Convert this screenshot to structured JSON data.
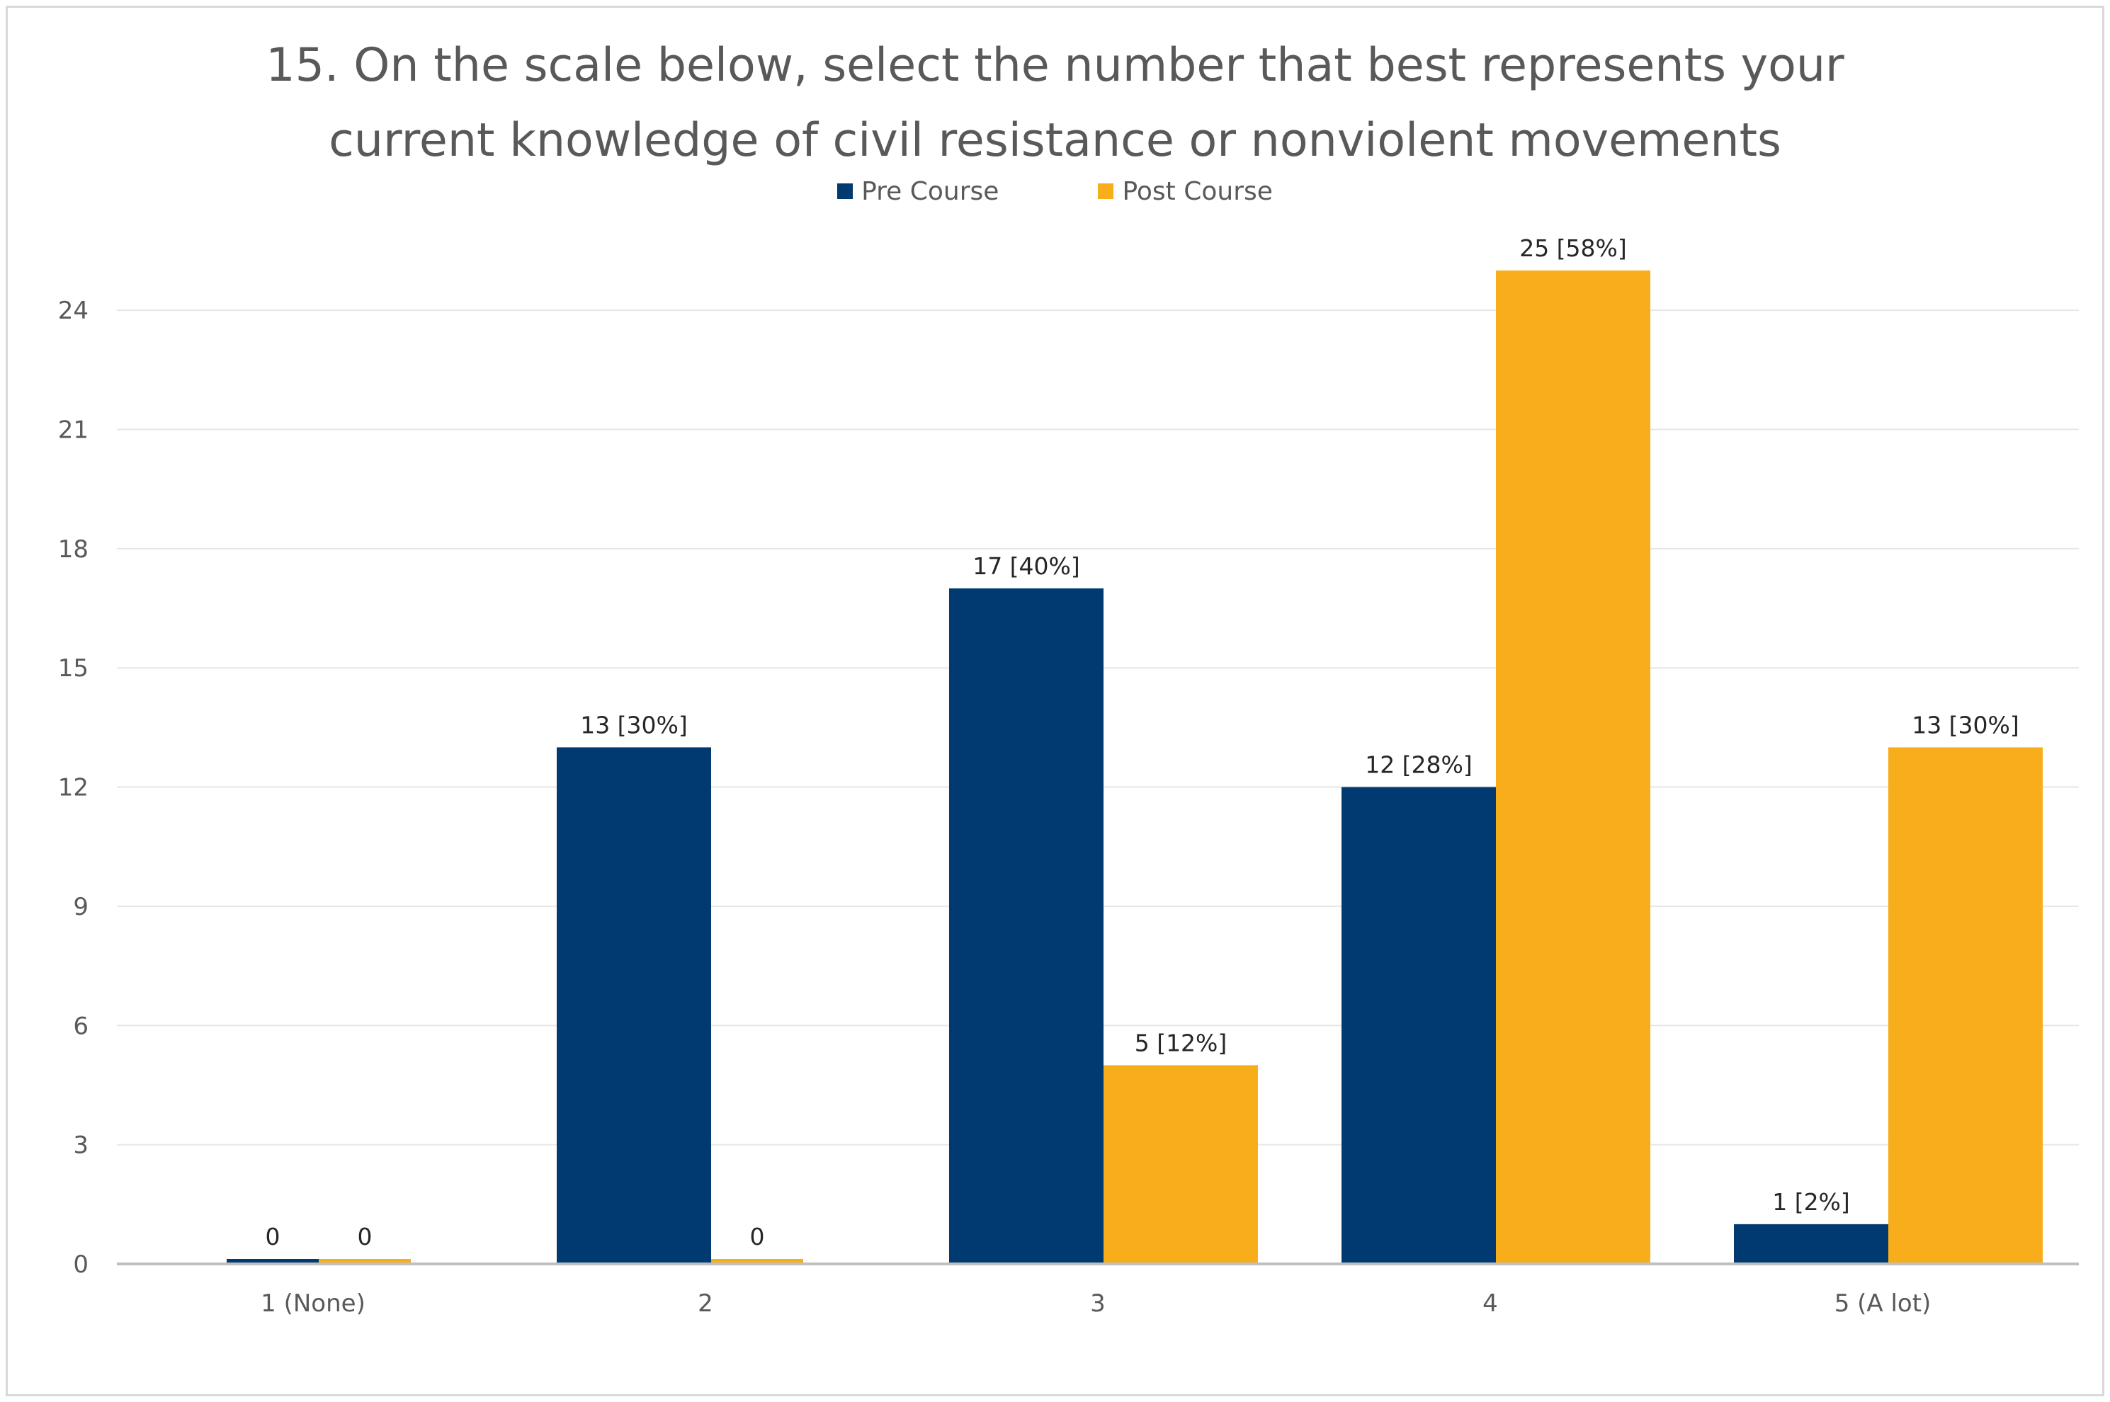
{
  "chart_data": {
    "type": "bar",
    "title": "15. On the scale below, select the number that best represents your\ncurrent knowledge of civil resistance or nonviolent movements",
    "categories": [
      "1 (None)",
      "2",
      "3",
      "4",
      "5 (A lot)"
    ],
    "series": [
      {
        "name": "Pre Course",
        "color": "#003a70",
        "values": [
          0,
          13,
          17,
          12,
          1
        ],
        "labels": [
          "0",
          "13 [30%]",
          "17 [40%]",
          "12 [28%]",
          "1 [2%]"
        ]
      },
      {
        "name": "Post Course",
        "color": "#f8ad1a",
        "values": [
          0,
          0,
          5,
          25,
          13
        ],
        "labels": [
          "0",
          "0",
          "5 [12%]",
          "25 [58%]",
          "13 [30%]"
        ]
      }
    ],
    "yticks": [
      "0",
      "3",
      "6",
      "9",
      "12",
      "15",
      "18",
      "21",
      "24"
    ],
    "ylim": [
      0,
      25
    ],
    "grid": true,
    "legend_position": "top-center",
    "xlabel": "",
    "ylabel": ""
  }
}
